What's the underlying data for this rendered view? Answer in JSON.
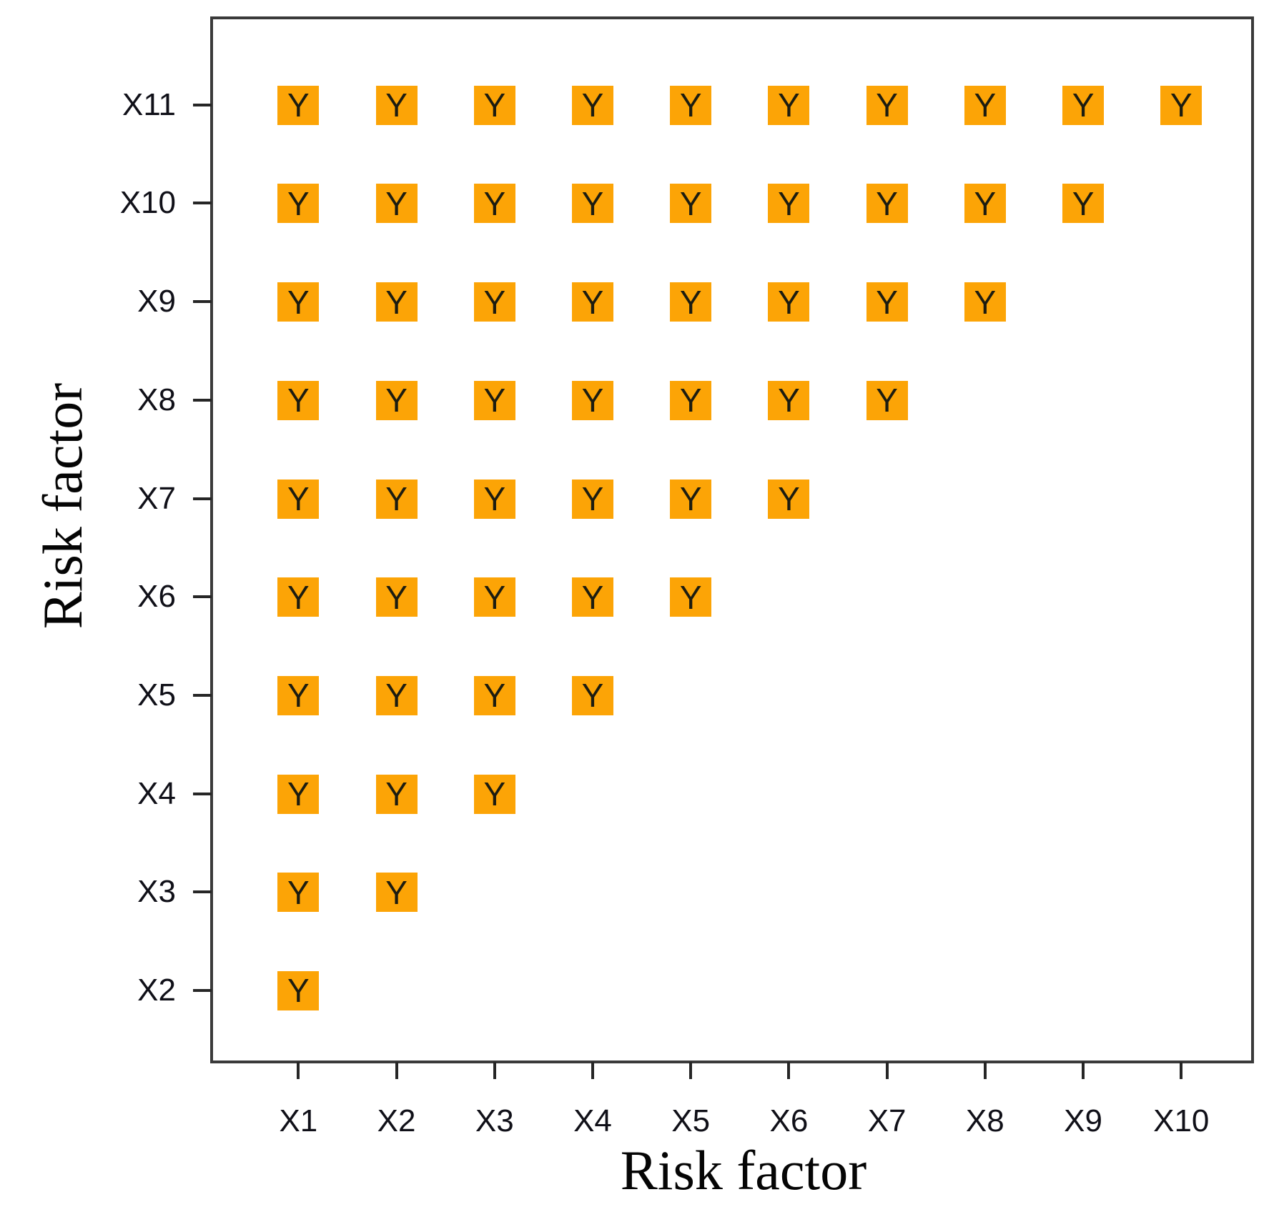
{
  "figure": {
    "background_color": "#ffffff",
    "box_border_color": "#3a3a3a",
    "tick_color": "#262626",
    "tick_label_color": "#101018",
    "axis_title_color": "#050505"
  },
  "chart_data": {
    "type": "heatmap",
    "title": "",
    "xlabel": "Risk factor",
    "ylabel": "Risk factor",
    "x_categories": [
      "X1",
      "X2",
      "X3",
      "X4",
      "X5",
      "X6",
      "X7",
      "X8",
      "X9",
      "X10"
    ],
    "y_categories_top_to_bottom": [
      "X11",
      "X10",
      "X9",
      "X8",
      "X7",
      "X6",
      "X5",
      "X4",
      "X3",
      "X2"
    ],
    "marker_label": "Y",
    "marker_color": "#FCA406",
    "marker_text_color": "#1C1C10",
    "grid": false,
    "legend": "none",
    "pattern": "lower-triangular: row Xi is marked Y for every column Xj with j < i",
    "rows": [
      {
        "row": "X11",
        "filled_columns": [
          "X1",
          "X2",
          "X3",
          "X4",
          "X5",
          "X6",
          "X7",
          "X8",
          "X9",
          "X10"
        ]
      },
      {
        "row": "X10",
        "filled_columns": [
          "X1",
          "X2",
          "X3",
          "X4",
          "X5",
          "X6",
          "X7",
          "X8",
          "X9"
        ]
      },
      {
        "row": "X9",
        "filled_columns": [
          "X1",
          "X2",
          "X3",
          "X4",
          "X5",
          "X6",
          "X7",
          "X8"
        ]
      },
      {
        "row": "X8",
        "filled_columns": [
          "X1",
          "X2",
          "X3",
          "X4",
          "X5",
          "X6",
          "X7"
        ]
      },
      {
        "row": "X7",
        "filled_columns": [
          "X1",
          "X2",
          "X3",
          "X4",
          "X5",
          "X6"
        ]
      },
      {
        "row": "X6",
        "filled_columns": [
          "X1",
          "X2",
          "X3",
          "X4",
          "X5"
        ]
      },
      {
        "row": "X5",
        "filled_columns": [
          "X1",
          "X2",
          "X3",
          "X4"
        ]
      },
      {
        "row": "X4",
        "filled_columns": [
          "X1",
          "X2",
          "X3"
        ]
      },
      {
        "row": "X3",
        "filled_columns": [
          "X1",
          "X2"
        ]
      },
      {
        "row": "X2",
        "filled_columns": [
          "X1"
        ]
      }
    ]
  }
}
